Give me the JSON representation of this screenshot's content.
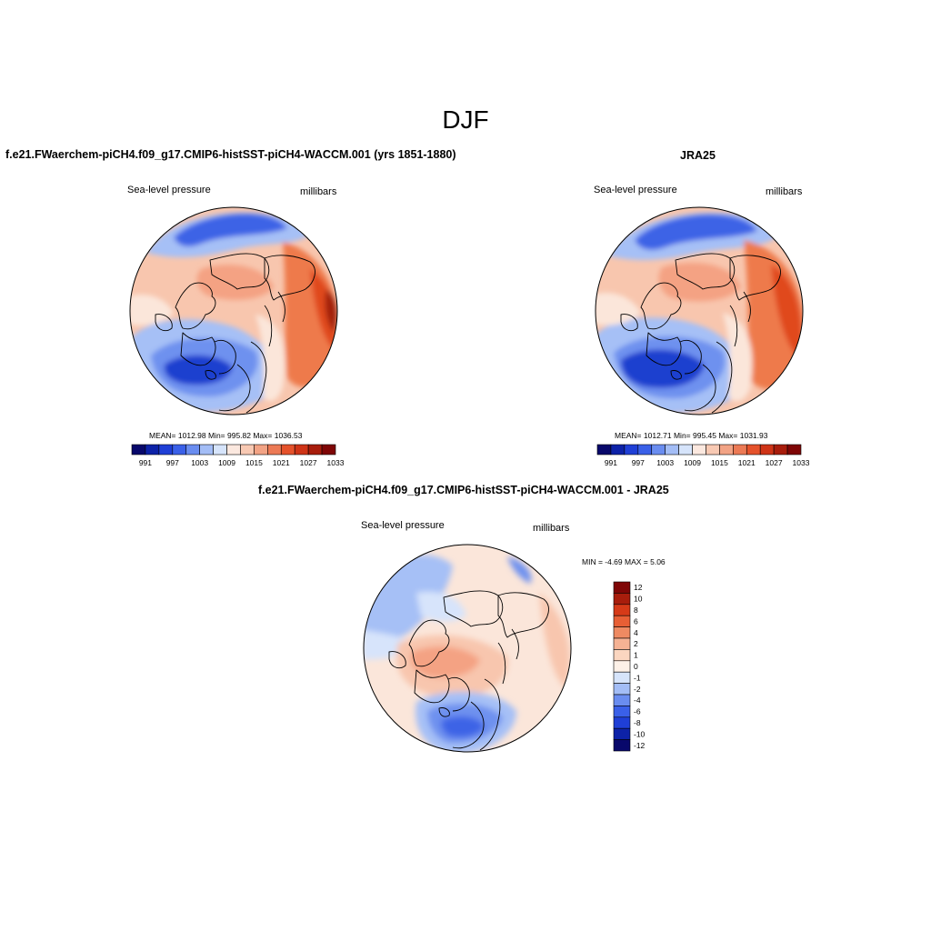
{
  "figure": {
    "title": "DJF"
  },
  "panels": [
    {
      "title": "f.e21.FWaerchem-piCH4.f09_g17.CMIP6-histSST-piCH4-WACCM.001 (yrs 1851-1880)",
      "variable": "Sea-level pressure",
      "units": "millibars",
      "stats": "MEAN= 1012.98   Min= 995.82   Max= 1036.53"
    },
    {
      "title": "JRA25",
      "variable": "Sea-level pressure",
      "units": "millibars",
      "stats": "MEAN= 1012.71   Min= 995.45   Max= 1031.93"
    },
    {
      "title": "f.e21.FWaerchem-piCH4.f09_g17.CMIP6-histSST-piCH4-WACCM.001 - JRA25",
      "variable": "Sea-level pressure",
      "units": "millibars",
      "stats": "MIN =  -4.69 MAX =   5.06"
    }
  ],
  "colorbar_abs": {
    "colors": [
      "#08086b",
      "#0d22a8",
      "#1f3fd6",
      "#3a60e8",
      "#6a8df0",
      "#a3bdf6",
      "#d6e4fb",
      "#fbe8df",
      "#f8c9b3",
      "#f2a385",
      "#ec7a55",
      "#e5522b",
      "#cf3417",
      "#a81d0c",
      "#7f0606"
    ],
    "tick_labels": [
      "991",
      "997",
      "1003",
      "1009",
      "1015",
      "1021",
      "1027",
      "1033"
    ]
  },
  "colorbar_diff": {
    "colors": [
      "#08086b",
      "#0d22a8",
      "#1f3fd6",
      "#3a60e8",
      "#6a8df0",
      "#a3bdf6",
      "#d6e4fb",
      "#fdf1e8",
      "#fbd6c0",
      "#f5b294",
      "#ee8a62",
      "#e75f35",
      "#d63a18",
      "#a81d0c",
      "#7f0606"
    ],
    "tick_labels": [
      "12",
      "10",
      "8",
      "6",
      "4",
      "2",
      "1",
      "0",
      "-1",
      "-2",
      "-4",
      "-6",
      "-8",
      "-10",
      "-12"
    ]
  },
  "map_colors": {
    "deep_red": "#a3210b",
    "red": "#e0481e",
    "orange_red": "#ee7a4c",
    "salmon": "#f4a283",
    "light_salmon": "#f8c6ae",
    "cream": "#fbe6da",
    "pale_blue": "#d7e4fb",
    "light_blue": "#a6c0f6",
    "blue": "#6e91ef",
    "mid_blue": "#3d63e6",
    "deep_blue": "#1d3fcf"
  }
}
